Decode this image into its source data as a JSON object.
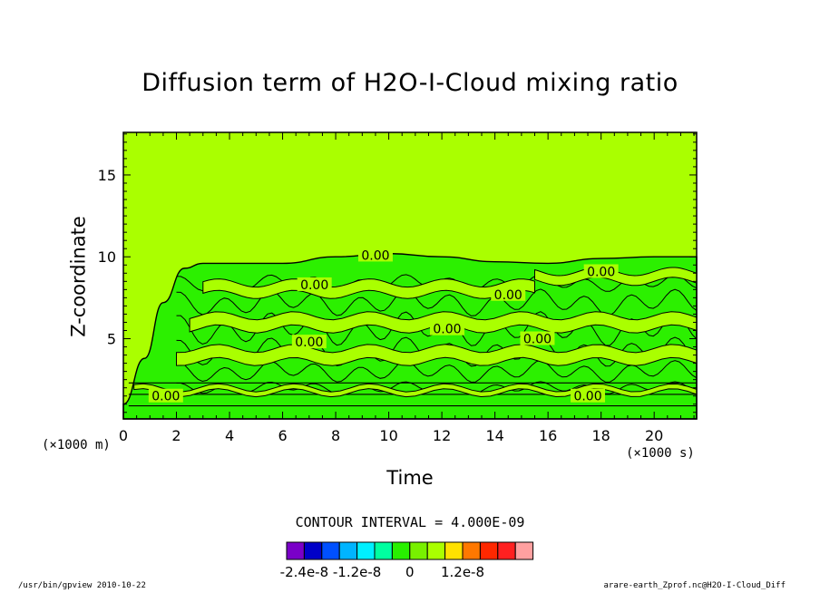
{
  "chart_data": {
    "type": "contour",
    "title": "Diffusion term of H2O-I-Cloud mixing ratio",
    "xlabel": "Time",
    "ylabel": "Z-coordinate",
    "x_unit": "(×1000 s)",
    "y_unit": "(×1000 m)",
    "xlim": [
      0,
      21.6
    ],
    "ylim": [
      0.1,
      17.6
    ],
    "x_ticks": [
      0,
      2,
      4,
      6,
      8,
      10,
      12,
      14,
      16,
      18,
      20
    ],
    "y_ticks": [
      5,
      10,
      15
    ],
    "contour_interval_text": "CONTOUR INTERVAL = 4.000E-09",
    "contour_labels": [
      {
        "text": "0.00",
        "x": 9.5,
        "y": 10.1
      },
      {
        "text": "0.00",
        "x": 18.0,
        "y": 9.1
      },
      {
        "text": "0.00",
        "x": 7.2,
        "y": 8.3
      },
      {
        "text": "0.00",
        "x": 14.5,
        "y": 7.7
      },
      {
        "text": "0.00",
        "x": 12.2,
        "y": 5.6
      },
      {
        "text": "0.00",
        "x": 15.6,
        "y": 5.0
      },
      {
        "text": "0.00",
        "x": 7.0,
        "y": 4.8
      },
      {
        "text": "0.00",
        "x": 1.6,
        "y": 1.5
      },
      {
        "text": "0.00",
        "x": 17.5,
        "y": 1.5
      }
    ],
    "field": {
      "background_level": "0 to 4e-9",
      "negative_band_level": "-4e-9 to 0",
      "negative_region_boundary_top": [
        {
          "x": 0.0,
          "y": 1.0
        },
        {
          "x": 0.8,
          "y": 3.8
        },
        {
          "x": 1.5,
          "y": 7.2
        },
        {
          "x": 2.3,
          "y": 9.3
        },
        {
          "x": 3.0,
          "y": 9.6
        },
        {
          "x": 6.0,
          "y": 9.6
        },
        {
          "x": 8.0,
          "y": 10.0
        },
        {
          "x": 10.0,
          "y": 10.2
        },
        {
          "x": 12.0,
          "y": 10.0
        },
        {
          "x": 14.0,
          "y": 9.7
        },
        {
          "x": 16.0,
          "y": 9.6
        },
        {
          "x": 18.0,
          "y": 9.9
        },
        {
          "x": 20.0,
          "y": 10.0
        },
        {
          "x": 21.6,
          "y": 10.0
        }
      ]
    },
    "colorbar": {
      "colors": [
        "#7a00c8",
        "#0000c8",
        "#0050ff",
        "#00b4ff",
        "#00f0ff",
        "#00ffa0",
        "#28f000",
        "#78f000",
        "#aaff00",
        "#ffe100",
        "#ff7800",
        "#ff2800",
        "#ff2020",
        "#ffa0a0"
      ],
      "tick_labels": [
        "-2.4e-8",
        "-1.2e-8",
        "0",
        "1.2e-8"
      ],
      "tick_positions": [
        1,
        4,
        7,
        10
      ]
    },
    "colors": {
      "background_fill": "#aaff00",
      "negative_fill": "#2cf000",
      "contour_line": "#000000"
    }
  },
  "footer": {
    "left": "/usr/bin/gpview   2010-10-22",
    "right": "arare-earth_Zprof.nc@H2O-I-Cloud_Diff"
  }
}
